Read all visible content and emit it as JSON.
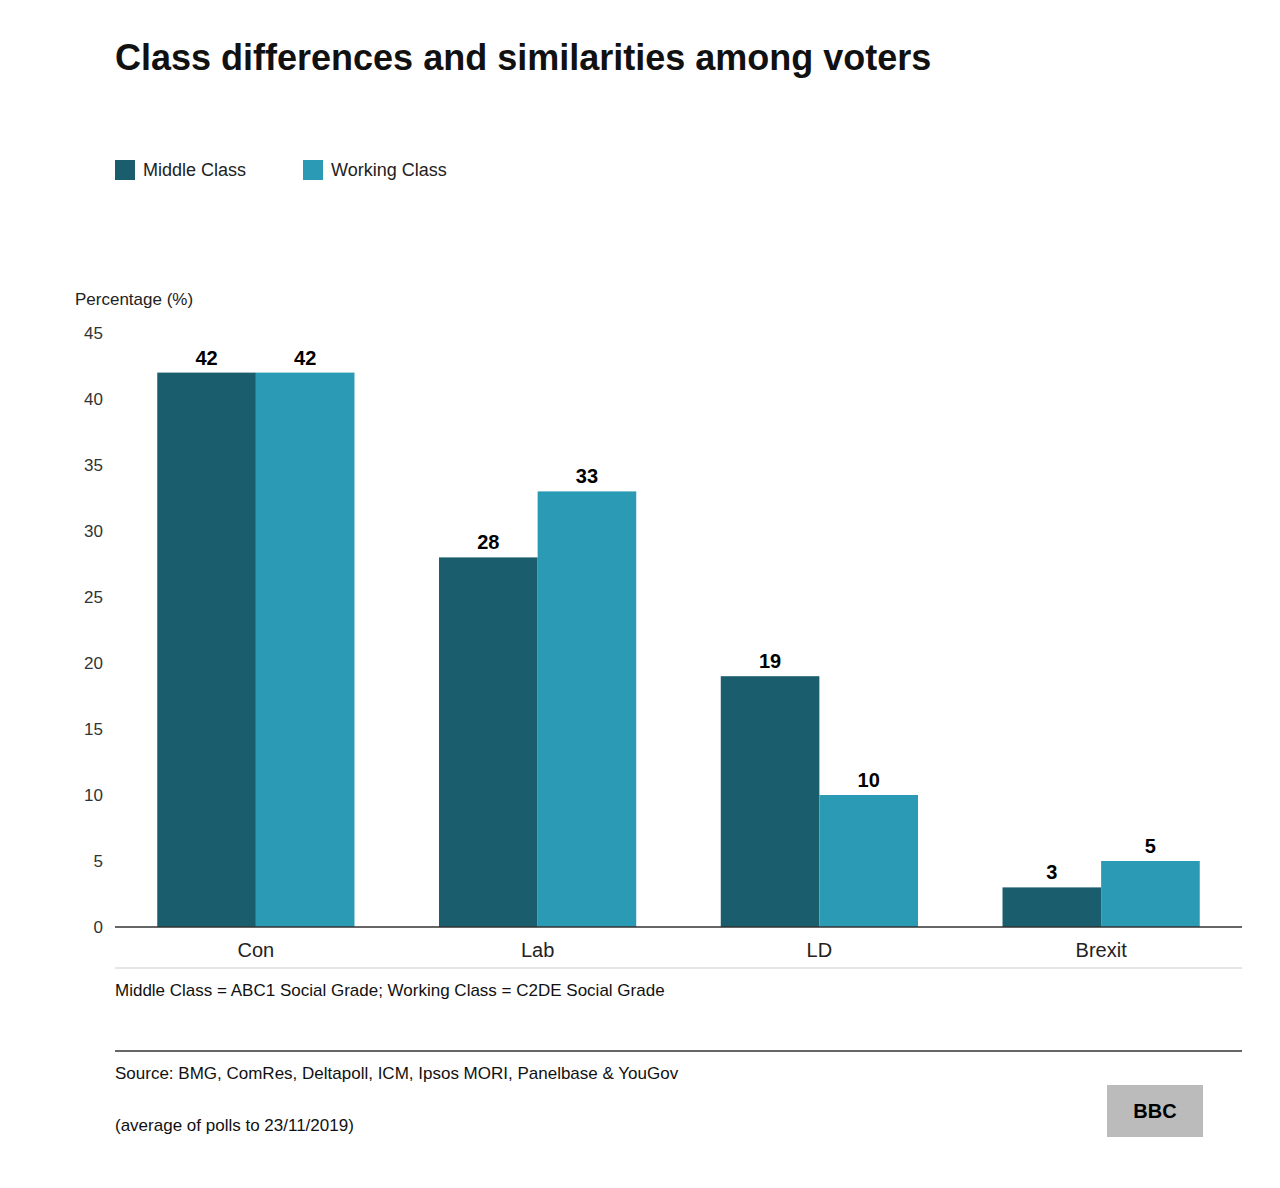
{
  "chart_data": {
    "type": "bar",
    "title": "Class differences and similarities among voters",
    "y_label": "Percentage (%)",
    "categories": [
      "Con",
      "Lab",
      "LD",
      "Brexit"
    ],
    "series": [
      {
        "name": "Middle Class",
        "color": "#1a5e6e",
        "values": [
          42,
          28,
          19,
          3
        ]
      },
      {
        "name": "Working Class",
        "color": "#2a9ab5",
        "values": [
          42,
          33,
          10,
          5
        ]
      }
    ],
    "ylim": [
      0,
      45
    ],
    "yticks": [
      0,
      5,
      10,
      15,
      20,
      25,
      30,
      35,
      40,
      45
    ],
    "grid": false,
    "legend": "top",
    "data_labels": true,
    "annotations": [
      "Middle Class = ABC1 Social Grade; Working Class = C2DE Social Grade",
      "Source: BMG, ComRes, Deltapoll, ICM, Ipsos MORI, Panelbase & YouGov",
      "(average of polls to 23/11/2019)",
      "BBC"
    ]
  }
}
